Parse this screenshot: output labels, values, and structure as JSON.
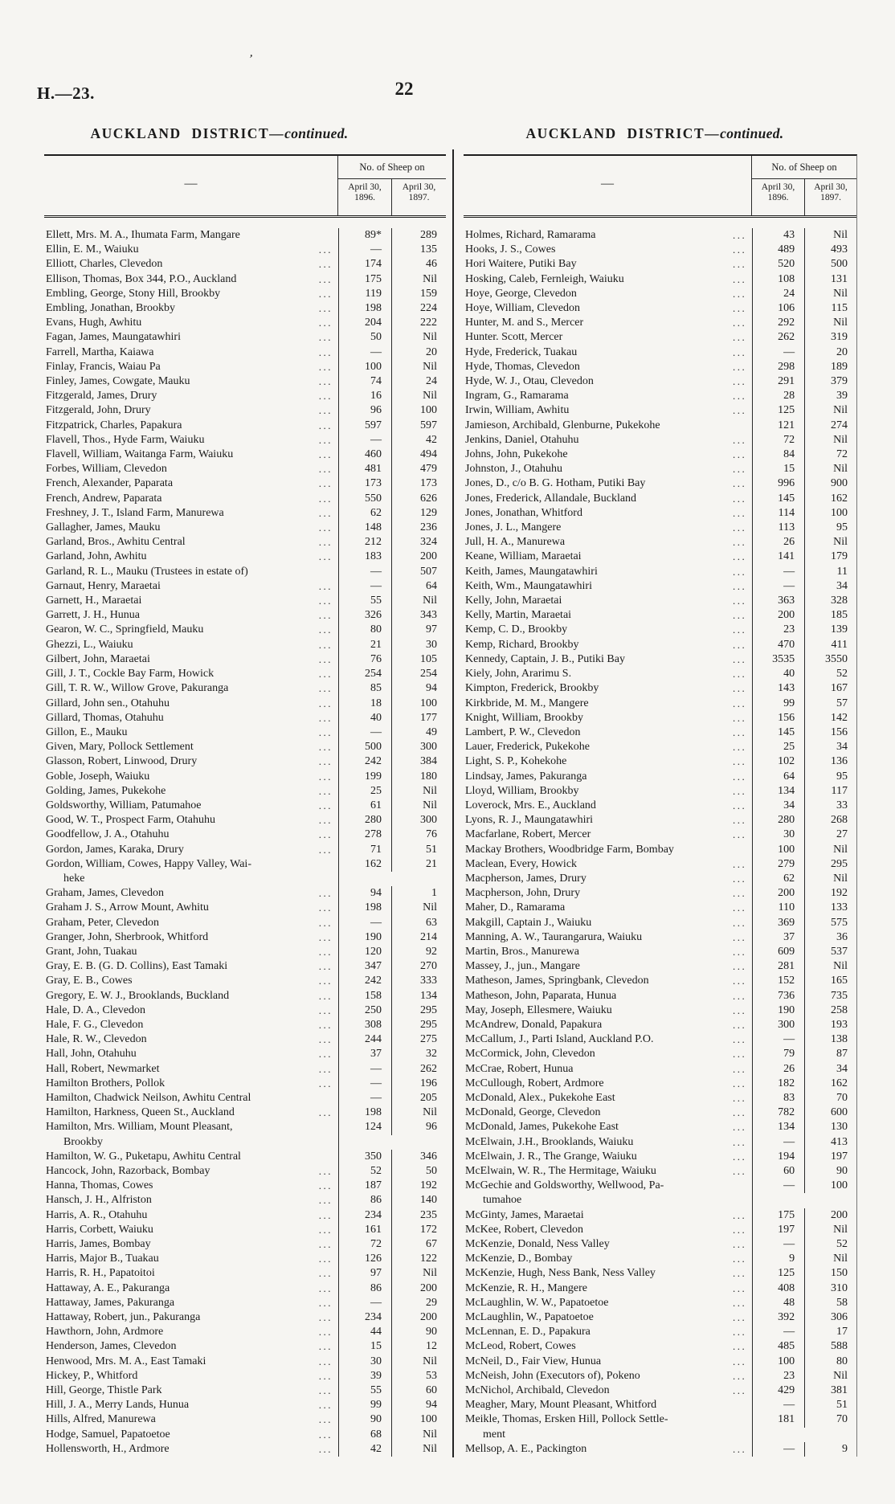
{
  "page": {
    "doc_ref": "H.—23.",
    "page_number": "22",
    "ink_speck": "’"
  },
  "left": {
    "title": "AUCKLAND DISTRICT—",
    "continued": "continued.",
    "head_dash": "—",
    "sheep_header": "No. of Sheep on",
    "col_1896": "April 30, 1896.",
    "col_1897": "April 30, 1897.",
    "rows": [
      [
        "Ellett, Mrs. M. A., Ihumata Farm, Mangare",
        "89*",
        "289",
        0
      ],
      [
        "Ellin, E. M., Waiuku",
        "—",
        "135",
        1
      ],
      [
        "Elliott, Charles, Clevedon",
        "174",
        "46",
        1
      ],
      [
        "Ellison, Thomas, Box 344, P.O., Auckland",
        "175",
        "Nil",
        1
      ],
      [
        "Embling, George, Stony Hill, Brookby",
        "119",
        "159",
        1
      ],
      [
        "Embling, Jonathan, Brookby",
        "198",
        "224",
        1
      ],
      [
        "Evans, Hugh, Awhitu",
        "204",
        "222",
        1
      ],
      [
        "Fagan, James, Maungatawhiri",
        "50",
        "Nil",
        1
      ],
      [
        "Farrell, Martha, Kaiawa",
        "—",
        "20",
        1
      ],
      [
        "Finlay, Francis, Waiau Pa",
        "100",
        "Nil",
        1
      ],
      [
        "Finley, James, Cowgate, Mauku",
        "74",
        "24",
        1
      ],
      [
        "Fitzgerald, James, Drury",
        "16",
        "Nil",
        1
      ],
      [
        "Fitzgerald, John, Drury",
        "96",
        "100",
        1
      ],
      [
        "Fitzpatrick, Charles, Papakura",
        "597",
        "597",
        1
      ],
      [
        "Flavell, Thos., Hyde Farm, Waiuku",
        "—",
        "42",
        1
      ],
      [
        "Flavell, William, Waitanga Farm, Waiuku",
        "460",
        "494",
        1
      ],
      [
        "Forbes, William, Clevedon",
        "481",
        "479",
        1
      ],
      [
        "French, Alexander, Paparata",
        "173",
        "173",
        1
      ],
      [
        "French, Andrew, Paparata",
        "550",
        "626",
        1
      ],
      [
        "Freshney, J. T., Island Farm, Manurewa",
        "62",
        "129",
        1
      ],
      [
        "Gallagher, James, Mauku",
        "148",
        "236",
        1
      ],
      [
        "Garland, Bros., Awhitu Central",
        "212",
        "324",
        1
      ],
      [
        "Garland, John, Awhitu",
        "183",
        "200",
        1
      ],
      [
        "Garland, R. L., Mauku (Trustees in estate of)",
        "—",
        "507",
        0
      ],
      [
        "Garnaut, Henry, Maraetai",
        "—",
        "64",
        1
      ],
      [
        "Garnett, H., Maraetai",
        "55",
        "Nil",
        1
      ],
      [
        "Garrett, J. H., Hunua",
        "326",
        "343",
        1
      ],
      [
        "Gearon, W. C., Springfield, Mauku",
        "80",
        "97",
        1
      ],
      [
        "Ghezzi, L., Waiuku",
        "21",
        "30",
        1
      ],
      [
        "Gilbert, John, Maraetai",
        "76",
        "105",
        1
      ],
      [
        "Gill, J. T., Cockle Bay Farm, Howick",
        "254",
        "254",
        1
      ],
      [
        "Gill, T. R. W., Willow Grove, Pakuranga",
        "85",
        "94",
        1
      ],
      [
        "Gillard, John sen., Otahuhu",
        "18",
        "100",
        1
      ],
      [
        "Gillard, Thomas, Otahuhu",
        "40",
        "177",
        1
      ],
      [
        "Gillon, E., Mauku",
        "—",
        "49",
        1
      ],
      [
        "Given, Mary, Pollock Settlement",
        "500",
        "300",
        1
      ],
      [
        "Glasson, Robert, Linwood, Drury",
        "242",
        "384",
        1
      ],
      [
        "Goble, Joseph, Waiuku",
        "199",
        "180",
        1
      ],
      [
        "Golding, James, Pukekohe",
        "25",
        "Nil",
        1
      ],
      [
        "Goldsworthy, William, Patumahoe",
        "61",
        "Nil",
        1
      ],
      [
        "Good, W. T., Prospect Farm, Otahuhu",
        "280",
        "300",
        1
      ],
      [
        "Goodfellow, J. A., Otahuhu",
        "278",
        "76",
        1
      ],
      [
        "Gordon, James, Karaka, Drury",
        "71",
        "51",
        1
      ],
      [
        "Gordon, William, Cowes, Happy Valley, Wai-\nheke",
        "162",
        "21",
        0
      ],
      [
        "Graham, James, Clevedon",
        "94",
        "1",
        1
      ],
      [
        "Graham J. S., Arrow Mount, Awhitu",
        "198",
        "Nil",
        1
      ],
      [
        "Graham, Peter, Clevedon",
        "—",
        "63",
        1
      ],
      [
        "Granger, John, Sherbrook, Whitford",
        "190",
        "214",
        1
      ],
      [
        "Grant, John, Tuakau",
        "120",
        "92",
        1
      ],
      [
        "Gray, E. B. (G. D. Collins), East Tamaki",
        "347",
        "270",
        1
      ],
      [
        "Gray, E. B., Cowes",
        "242",
        "333",
        1
      ],
      [
        "Gregory, E. W. J., Brooklands, Buckland",
        "158",
        "134",
        1
      ],
      [
        "Hale, D. A., Clevedon",
        "250",
        "295",
        1
      ],
      [
        "Hale, F. G., Clevedon",
        "308",
        "295",
        1
      ],
      [
        "Hale, R. W., Clevedon",
        "244",
        "275",
        1
      ],
      [
        "Hall, John, Otahuhu",
        "37",
        "32",
        1
      ],
      [
        "Hall, Robert, Newmarket",
        "—",
        "262",
        1
      ],
      [
        "Hamilton Brothers, Pollok",
        "—",
        "196",
        1
      ],
      [
        "Hamilton, Chadwick Neilson, Awhitu Central",
        "—",
        "205",
        0
      ],
      [
        "Hamilton, Harkness, Queen St., Auckland",
        "198",
        "Nil",
        1
      ],
      [
        "Hamilton, Mrs. William, Mount Pleasant,\nBrookby",
        "124",
        "96",
        0
      ],
      [
        "Hamilton, W. G., Puketapu, Awhitu Central",
        "350",
        "346",
        0
      ],
      [
        "Hancock, John, Razorback, Bombay",
        "52",
        "50",
        1
      ],
      [
        "Hanna, Thomas, Cowes",
        "187",
        "192",
        1
      ],
      [
        "Hansch, J. H., Alfriston",
        "86",
        "140",
        1
      ],
      [
        "Harris, A. R., Otahuhu",
        "234",
        "235",
        1
      ],
      [
        "Harris, Corbett, Waiuku",
        "161",
        "172",
        1
      ],
      [
        "Harris, James, Bombay",
        "72",
        "67",
        1
      ],
      [
        "Harris, Major B., Tuakau",
        "126",
        "122",
        1
      ],
      [
        "Harris, R. H., Papatoitoi",
        "97",
        "Nil",
        1
      ],
      [
        "Hattaway, A. E., Pakuranga",
        "86",
        "200",
        1
      ],
      [
        "Hattaway, James, Pakuranga",
        "—",
        "29",
        1
      ],
      [
        "Hattaway, Robert, jun., Pakuranga",
        "234",
        "200",
        1
      ],
      [
        "Hawthorn, John, Ardmore",
        "44",
        "90",
        1
      ],
      [
        "Henderson, James, Clevedon",
        "15",
        "12",
        1
      ],
      [
        "Henwood, Mrs. M. A., East Tamaki",
        "30",
        "Nil",
        1
      ],
      [
        "Hickey, P., Whitford",
        "39",
        "53",
        1
      ],
      [
        "Hill, George, Thistle Park",
        "55",
        "60",
        1
      ],
      [
        "Hill, J. A., Merry Lands, Hunua",
        "99",
        "94",
        1
      ],
      [
        "Hills, Alfred, Manurewa",
        "90",
        "100",
        1
      ],
      [
        "Hodge, Samuel, Papatoetoe",
        "68",
        "Nil",
        1
      ],
      [
        "Hollensworth, H., Ardmore",
        "42",
        "Nil",
        1
      ]
    ]
  },
  "right": {
    "title": "AUCKLAND DISTRICT—",
    "continued": "continued.",
    "head_dash": "—",
    "sheep_header": "No. of Sheep on",
    "col_1896": "April 30, 1896.",
    "col_1897": "April 30, 1897.",
    "rows": [
      [
        "Holmes, Richard, Ramarama",
        "43",
        "Nil",
        1
      ],
      [
        "Hooks, J. S., Cowes",
        "489",
        "493",
        1
      ],
      [
        "Hori Waitere, Putiki Bay",
        "520",
        "500",
        1
      ],
      [
        "Hosking, Caleb, Fernleigh, Waiuku",
        "108",
        "131",
        1
      ],
      [
        "Hoye, George, Clevedon",
        "24",
        "Nil",
        1
      ],
      [
        "Hoye, William, Clevedon",
        "106",
        "115",
        1
      ],
      [
        "Hunter, M. and S., Mercer",
        "292",
        "Nil",
        1
      ],
      [
        "Hunter. Scott, Mercer",
        "262",
        "319",
        1
      ],
      [
        "Hyde, Frederick, Tuakau",
        "—",
        "20",
        1
      ],
      [
        "Hyde, Thomas, Clevedon",
        "298",
        "189",
        1
      ],
      [
        "Hyde, W. J., Otau, Clevedon",
        "291",
        "379",
        1
      ],
      [
        "Ingram, G., Ramarama",
        "28",
        "39",
        1
      ],
      [
        "Irwin, William, Awhitu",
        "125",
        "Nil",
        1
      ],
      [
        "Jamieson, Archibald, Glenburne, Pukekohe",
        "121",
        "274",
        0
      ],
      [
        "Jenkins, Daniel, Otahuhu",
        "72",
        "Nil",
        1
      ],
      [
        "Johns, John, Pukekohe",
        "84",
        "72",
        1
      ],
      [
        "Johnston, J., Otahuhu",
        "15",
        "Nil",
        1
      ],
      [
        "Jones, D., c/o B. G. Hotham, Putiki Bay",
        "996",
        "900",
        1
      ],
      [
        "Jones, Frederick, Allandale, Buckland",
        "145",
        "162",
        1
      ],
      [
        "Jones, Jonathan, Whitford",
        "114",
        "100",
        1
      ],
      [
        "Jones, J. L., Mangere",
        "113",
        "95",
        1
      ],
      [
        "Jull, H. A., Manurewa",
        "26",
        "Nil",
        1
      ],
      [
        "Keane, William, Maraetai",
        "141",
        "179",
        1
      ],
      [
        "Keith, James, Maungatawhiri",
        "—",
        "11",
        1
      ],
      [
        "Keith, Wm., Maungatawhiri",
        "—",
        "34",
        1
      ],
      [
        "Kelly, John, Maraetai",
        "363",
        "328",
        1
      ],
      [
        "Kelly, Martin, Maraetai",
        "200",
        "185",
        1
      ],
      [
        "Kemp, C. D., Brookby",
        "23",
        "139",
        1
      ],
      [
        "Kemp, Richard, Brookby",
        "470",
        "411",
        1
      ],
      [
        "Kennedy, Captain, J. B., Putiki Bay",
        "3535",
        "3550",
        1
      ],
      [
        "Kiely, John, Ararimu S.",
        "40",
        "52",
        1
      ],
      [
        "Kimpton, Frederick, Brookby",
        "143",
        "167",
        1
      ],
      [
        "Kirkbride, M. M., Mangere",
        "99",
        "57",
        1
      ],
      [
        "Knight, William, Brookby",
        "156",
        "142",
        1
      ],
      [
        "Lambert, P. W., Clevedon",
        "145",
        "156",
        1
      ],
      [
        "Lauer, Frederick, Pukekohe",
        "25",
        "34",
        1
      ],
      [
        "Light, S. P., Kohekohe",
        "102",
        "136",
        1
      ],
      [
        "Lindsay, James, Pakuranga",
        "64",
        "95",
        1
      ],
      [
        "Lloyd, William, Brookby",
        "134",
        "117",
        1
      ],
      [
        "Loverock, Mrs. E., Auckland",
        "34",
        "33",
        1
      ],
      [
        "Lyons, R. J., Maungatawhiri",
        "280",
        "268",
        1
      ],
      [
        "Macfarlane, Robert, Mercer",
        "30",
        "27",
        1
      ],
      [
        "Mackay Brothers, Woodbridge Farm, Bombay",
        "100",
        "Nil",
        0
      ],
      [
        "Maclean, Every, Howick",
        "279",
        "295",
        1
      ],
      [
        "Macpherson, James, Drury",
        "62",
        "Nil",
        1
      ],
      [
        "Macpherson, John, Drury",
        "200",
        "192",
        1
      ],
      [
        "Maher, D., Ramarama",
        "110",
        "133",
        1
      ],
      [
        "Makgill, Captain J., Waiuku",
        "369",
        "575",
        1
      ],
      [
        "Manning, A. W., Taurangarura, Waiuku",
        "37",
        "36",
        1
      ],
      [
        "Martin, Bros., Manurewa",
        "609",
        "537",
        1
      ],
      [
        "Massey, J., jun., Mangare",
        "281",
        "Nil",
        1
      ],
      [
        "Matheson, James, Springbank, Clevedon",
        "152",
        "165",
        1
      ],
      [
        "Matheson, John, Paparata, Hunua",
        "736",
        "735",
        1
      ],
      [
        "May, Joseph, Ellesmere, Waiuku",
        "190",
        "258",
        1
      ],
      [
        "McAndrew, Donald, Papakura",
        "300",
        "193",
        1
      ],
      [
        "McCallum, J., Parti Island, Auckland P.O.",
        "—",
        "138",
        1
      ],
      [
        "McCormick, John, Clevedon",
        "79",
        "87",
        1
      ],
      [
        "McCrae, Robert, Hunua",
        "26",
        "34",
        1
      ],
      [
        "McCullough, Robert, Ardmore",
        "182",
        "162",
        1
      ],
      [
        "McDonald, Alex., Pukekohe East",
        "83",
        "70",
        1
      ],
      [
        "McDonald, George, Clevedon",
        "782",
        "600",
        1
      ],
      [
        "McDonald, James, Pukekohe East",
        "134",
        "130",
        1
      ],
      [
        "McElwain, J.H., Brooklands, Waiuku",
        "—",
        "413",
        1
      ],
      [
        "McElwain, J. R., The Grange, Waiuku",
        "194",
        "197",
        1
      ],
      [
        "McElwain, W. R., The Hermitage, Waiuku",
        "60",
        "90",
        1
      ],
      [
        "McGechie and Goldsworthy, Wellwood, Pa-\ntumahoe",
        "—",
        "100",
        0
      ],
      [
        "McGinty, James, Maraetai",
        "175",
        "200",
        1
      ],
      [
        "McKee, Robert, Clevedon",
        "197",
        "Nil",
        1
      ],
      [
        "McKenzie, Donald, Ness Valley",
        "—",
        "52",
        1
      ],
      [
        "McKenzie, D., Bombay",
        "9",
        "Nil",
        1
      ],
      [
        "McKenzie, Hugh, Ness Bank, Ness Valley",
        "125",
        "150",
        1
      ],
      [
        "McKenzie, R. H., Mangere",
        "408",
        "310",
        1
      ],
      [
        "McLaughlin, W. W., Papatoetoe",
        "48",
        "58",
        1
      ],
      [
        "McLaughlin, W., Papatoetoe",
        "392",
        "306",
        1
      ],
      [
        "McLennan, E. D., Papakura",
        "—",
        "17",
        1
      ],
      [
        "McLeod, Robert, Cowes",
        "485",
        "588",
        1
      ],
      [
        "McNeil, D., Fair View, Hunua",
        "100",
        "80",
        1
      ],
      [
        "McNeish, John (Executors of), Pokeno",
        "23",
        "Nil",
        1
      ],
      [
        "McNichol, Archibald, Clevedon",
        "429",
        "381",
        1
      ],
      [
        "Meagher, Mary, Mount Pleasant, Whitford",
        "—",
        "51",
        0
      ],
      [
        "Meikle, Thomas, Ersken Hill, Pollock Settle-\nment",
        "181",
        "70",
        0
      ],
      [
        "Mellsop, A. E., Packington",
        "—",
        "9",
        1
      ]
    ]
  }
}
